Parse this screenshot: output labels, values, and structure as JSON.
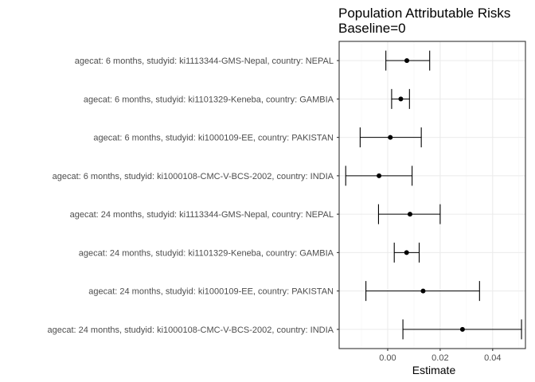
{
  "chart_data": {
    "type": "forest",
    "title": "Population Attributable Risks",
    "subtitle": "Baseline=0",
    "xlabel": "Estimate",
    "ylabel": "",
    "xlim": [
      -0.0185,
      0.0525
    ],
    "xticks": [
      0.0,
      0.02,
      0.04
    ],
    "xtick_labels": [
      "0.00",
      "0.02",
      "0.04"
    ],
    "grid": true,
    "theme": "bw",
    "categories": [
      "agecat: 6 months, studyid: ki1113344-GMS-Nepal, country: NEPAL",
      "agecat: 6 months, studyid: ki1101329-Keneba, country: GAMBIA",
      "agecat: 6 months, studyid: ki1000109-EE, country: PAKISTAN",
      "agecat: 6 months, studyid: ki1000108-CMC-V-BCS-2002, country: INDIA",
      "agecat: 24 months, studyid: ki1113344-GMS-Nepal, country: NEPAL",
      "agecat: 24 months, studyid: ki1101329-Keneba, country: GAMBIA",
      "agecat: 24 months, studyid: ki1000109-EE, country: PAKISTAN",
      "agecat: 24 months, studyid: ki1000108-CMC-V-BCS-2002, country: INDIA"
    ],
    "estimates": [
      0.0073,
      0.005,
      0.001,
      -0.0033,
      0.0085,
      0.0072,
      0.0135,
      0.0285
    ],
    "lower": [
      -0.0007,
      0.0015,
      -0.0105,
      -0.016,
      -0.0035,
      0.0025,
      -0.0083,
      0.0058
    ],
    "upper": [
      0.016,
      0.0083,
      0.0128,
      0.0093,
      0.02,
      0.012,
      0.035,
      0.051
    ],
    "colors": {
      "point": "#000000",
      "errorbar": "#000000",
      "panel_border": "#333333",
      "grid_major": "#ebebeb",
      "grid_minor": "#f5f5f5"
    }
  }
}
